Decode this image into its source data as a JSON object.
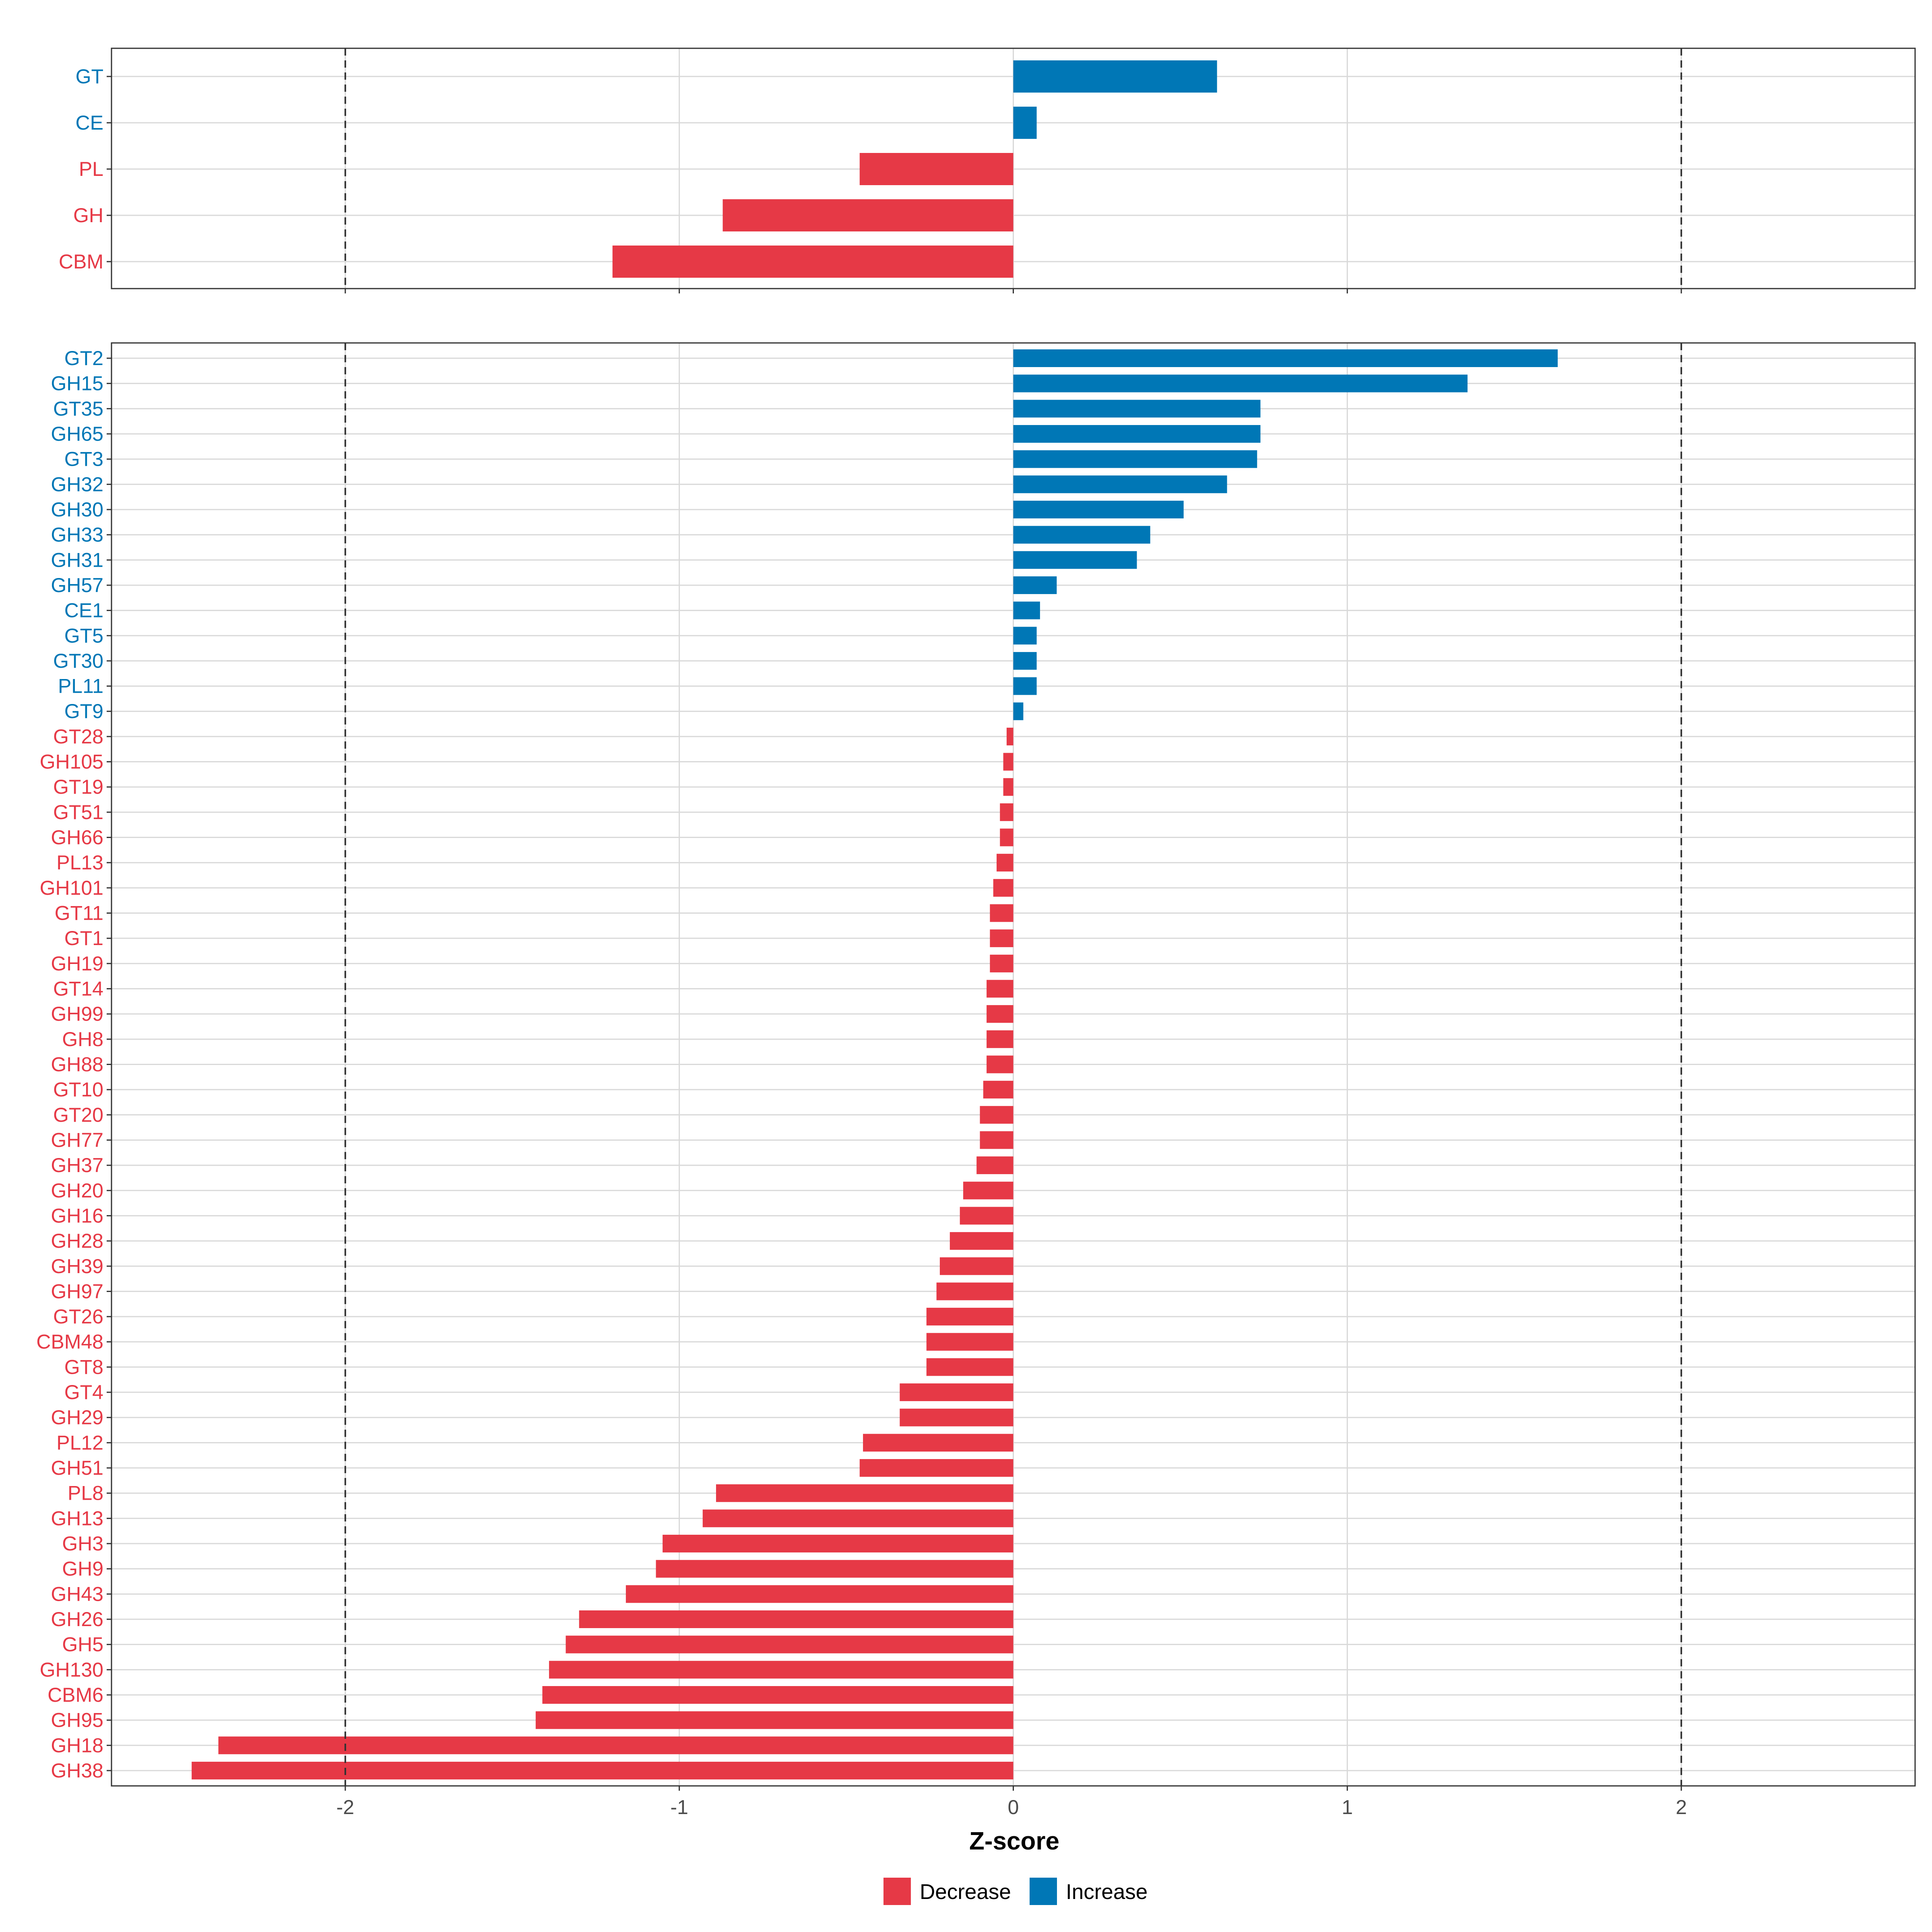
{
  "chart_data": {
    "type": "bar",
    "orientation": "horizontal",
    "xlabel": "Z-score",
    "xlim": [
      -2.7,
      2.7
    ],
    "x_ticks": [
      -2,
      -1,
      0,
      1,
      2
    ],
    "x_tick_labels": [
      "-2",
      "-1",
      "0",
      "1",
      "2"
    ],
    "reference_lines": [
      -2,
      2
    ],
    "grid": true,
    "colors": {
      "Decrease": "#E63946",
      "Increase": "#0077B6"
    },
    "legend": {
      "position": "bottom",
      "entries": [
        {
          "label": "Decrease",
          "color": "#E63946"
        },
        {
          "label": "Increase",
          "color": "#0077B6"
        }
      ]
    },
    "panels": [
      {
        "name": "top",
        "categories": [
          "GT",
          "CE",
          "PL",
          "GH",
          "CBM"
        ],
        "values": [
          0.61,
          0.07,
          -0.46,
          -0.87,
          -1.2
        ]
      },
      {
        "name": "bottom",
        "categories": [
          "GT2",
          "GH15",
          "GT35",
          "GH65",
          "GT3",
          "GH32",
          "GH30",
          "GH33",
          "GH31",
          "GH57",
          "CE1",
          "GT5",
          "GT30",
          "PL11",
          "GT9",
          "GT28",
          "GH105",
          "GT19",
          "GT51",
          "GH66",
          "PL13",
          "GH101",
          "GT11",
          "GT1",
          "GH19",
          "GT14",
          "GH99",
          "GH8",
          "GH88",
          "GT10",
          "GT20",
          "GH77",
          "GH37",
          "GH20",
          "GH16",
          "GH28",
          "GH39",
          "GH97",
          "GT26",
          "CBM48",
          "GT8",
          "GT4",
          "GH29",
          "PL12",
          "GH51",
          "PL8",
          "GH13",
          "GH3",
          "GH9",
          "GH43",
          "GH26",
          "GH5",
          "GH130",
          "CBM6",
          "GH95",
          "GH18",
          "GH38"
        ],
        "values": [
          1.63,
          1.36,
          0.74,
          0.74,
          0.73,
          0.64,
          0.51,
          0.41,
          0.37,
          0.13,
          0.08,
          0.07,
          0.07,
          0.07,
          0.03,
          -0.02,
          -0.03,
          -0.03,
          -0.04,
          -0.04,
          -0.05,
          -0.06,
          -0.07,
          -0.07,
          -0.07,
          -0.08,
          -0.08,
          -0.08,
          -0.08,
          -0.09,
          -0.1,
          -0.1,
          -0.11,
          -0.15,
          -0.16,
          -0.19,
          -0.22,
          -0.23,
          -0.26,
          -0.26,
          -0.26,
          -0.34,
          -0.34,
          -0.45,
          -0.46,
          -0.89,
          -0.93,
          -1.05,
          -1.07,
          -1.16,
          -1.3,
          -1.34,
          -1.39,
          -1.41,
          -1.43,
          -2.38,
          -2.46
        ]
      }
    ]
  }
}
